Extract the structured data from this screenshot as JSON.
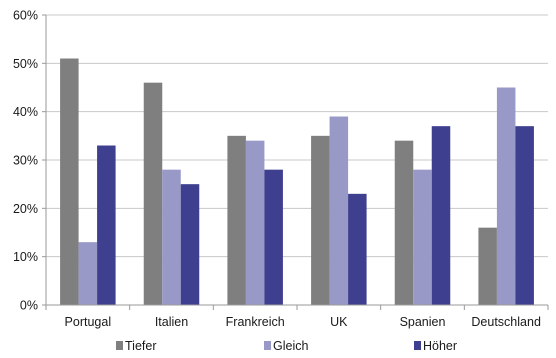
{
  "chart_data": {
    "type": "bar",
    "title": "",
    "xlabel": "",
    "ylabel": "",
    "categories": [
      "Portugal",
      "Italien",
      "Frankreich",
      "UK",
      "Spanien",
      "Deutschland"
    ],
    "series": [
      {
        "name": "Tiefer",
        "values": [
          51,
          46,
          35,
          35,
          34,
          16
        ],
        "color": "#7f7f7f"
      },
      {
        "name": "Gleich",
        "values": [
          13,
          28,
          34,
          39,
          28,
          45
        ],
        "color": "#9999c8"
      },
      {
        "name": "Höher",
        "values": [
          33,
          25,
          28,
          23,
          37,
          37
        ],
        "color": "#3f3f8f"
      }
    ],
    "ylim": [
      0,
      60
    ],
    "yticks": [
      0,
      10,
      20,
      30,
      40,
      50,
      60
    ],
    "ytick_labels": [
      "0%",
      "10%",
      "20%",
      "30%",
      "40%",
      "50%",
      "60%"
    ],
    "grid": true,
    "legend_position": "bottom"
  }
}
